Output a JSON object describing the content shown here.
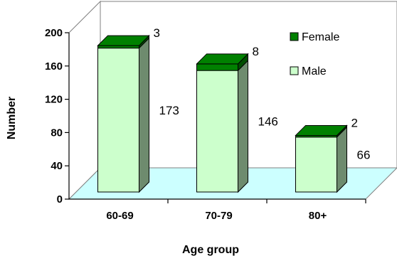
{
  "chart_data": {
    "type": "bar",
    "stacked": true,
    "three_d": true,
    "categories": [
      "60-69",
      "70-79",
      "80+"
    ],
    "series": [
      {
        "name": "Male",
        "values": [
          173,
          146,
          66
        ],
        "color": "#ccffcc"
      },
      {
        "name": "Female",
        "values": [
          3,
          8,
          2
        ],
        "color": "#008000"
      }
    ],
    "xlabel": "Age group",
    "ylabel": "Number",
    "ylim": [
      0,
      200
    ],
    "yticks": [
      0,
      40,
      80,
      120,
      160,
      200
    ],
    "grid": false,
    "legend": "top-right",
    "colors": {
      "floor": "#ccffff",
      "side_male": "#6e8b6e",
      "side_female": "#004d00"
    }
  }
}
